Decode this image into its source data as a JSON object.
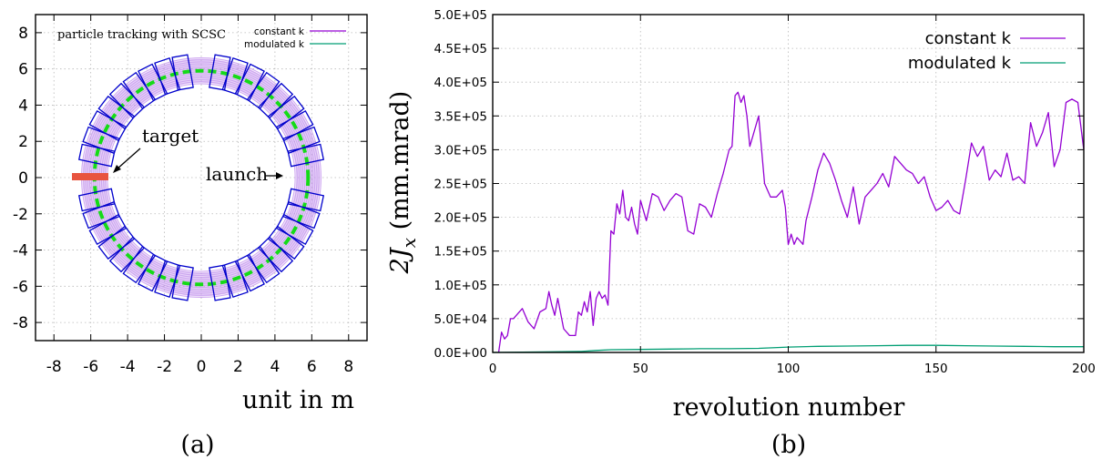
{
  "colors": {
    "constant": "#9400d3",
    "modulated": "#009e73",
    "magnet": "#0000cc",
    "target": "#e8543f",
    "orbit": "#00e020"
  },
  "chart_data": [
    {
      "type": "scatter",
      "panel_label": "(a)",
      "annotation": "particle tracking with SCSC",
      "legend": [
        "constant k",
        "modulated k"
      ],
      "xlabel": "unit in m",
      "ylabel": "",
      "xlim": [
        -9,
        9
      ],
      "ylim": [
        -9,
        9
      ],
      "xticks": [
        "-8",
        "-6",
        "-4",
        "-2",
        "0",
        "2",
        "4",
        "6",
        "8"
      ],
      "yticks": [
        "8",
        "6",
        "4",
        "2",
        "0",
        "-2",
        "-4",
        "-6",
        "-8"
      ],
      "grid": true,
      "ring": {
        "center": [
          0,
          0
        ],
        "radius_inner": 5.0,
        "radius_outer": 6.6
      },
      "target": {
        "x": [
          -7.0,
          -5.0
        ],
        "y": 0
      },
      "labels": {
        "target": "target",
        "launch": "launch"
      }
    },
    {
      "type": "line",
      "panel_label": "(b)",
      "xlabel": "revolution number",
      "ylabel": "2J_x (mm.mrad)",
      "ylabel_main": "2J",
      "ylabel_sub": "x",
      "ylabel_unit": " (mm.mrad)",
      "xlim": [
        0,
        200
      ],
      "ylim": [
        0,
        500000
      ],
      "xticks": [
        "0",
        "50",
        "100",
        "150",
        "200"
      ],
      "yticks": [
        "0.0E+00",
        "5.0E+04",
        "1.0E+05",
        "1.5E+05",
        "2.0E+05",
        "2.5E+05",
        "3.0E+05",
        "3.5E+05",
        "4.0E+05",
        "4.5E+05",
        "5.0E+05"
      ],
      "grid": true,
      "legend_position": "top-right",
      "series": [
        {
          "name": "constant k",
          "x": [
            2,
            3,
            4,
            5,
            6,
            7,
            8,
            10,
            12,
            14,
            16,
            18,
            19,
            20,
            21,
            22,
            24,
            26,
            28,
            29,
            30,
            31,
            32,
            33,
            34,
            35,
            36,
            37,
            38,
            39,
            40,
            41,
            42,
            43,
            44,
            45,
            46,
            47,
            48,
            49,
            50,
            52,
            54,
            56,
            58,
            60,
            62,
            64,
            66,
            68,
            70,
            72,
            74,
            76,
            78,
            80,
            81,
            82,
            83,
            84,
            85,
            86,
            87,
            88,
            90,
            92,
            94,
            96,
            98,
            99,
            100,
            101,
            102,
            103,
            104,
            105,
            106,
            108,
            110,
            112,
            114,
            116,
            118,
            120,
            122,
            124,
            126,
            128,
            130,
            132,
            134,
            136,
            138,
            140,
            142,
            144,
            146,
            148,
            150,
            152,
            154,
            156,
            158,
            160,
            162,
            164,
            166,
            168,
            170,
            172,
            174,
            176,
            178,
            180,
            182,
            184,
            186,
            188,
            190,
            192,
            194,
            196,
            198,
            200
          ],
          "y": [
            0,
            30000,
            20000,
            25000,
            50000,
            50000,
            55000,
            65000,
            45000,
            35000,
            60000,
            65000,
            90000,
            70000,
            55000,
            80000,
            35000,
            25000,
            25000,
            60000,
            55000,
            75000,
            60000,
            90000,
            40000,
            80000,
            90000,
            80000,
            85000,
            70000,
            180000,
            175000,
            220000,
            205000,
            240000,
            200000,
            195000,
            215000,
            190000,
            175000,
            225000,
            195000,
            235000,
            230000,
            210000,
            225000,
            235000,
            230000,
            180000,
            175000,
            220000,
            215000,
            200000,
            235000,
            265000,
            300000,
            305000,
            380000,
            385000,
            370000,
            380000,
            350000,
            305000,
            320000,
            350000,
            250000,
            230000,
            230000,
            240000,
            215000,
            160000,
            175000,
            160000,
            170000,
            165000,
            160000,
            195000,
            230000,
            270000,
            295000,
            280000,
            255000,
            225000,
            200000,
            245000,
            190000,
            230000,
            240000,
            250000,
            265000,
            245000,
            290000,
            280000,
            270000,
            265000,
            250000,
            260000,
            230000,
            210000,
            215000,
            225000,
            210000,
            205000,
            255000,
            310000,
            290000,
            305000,
            255000,
            270000,
            260000,
            295000,
            255000,
            260000,
            250000,
            340000,
            305000,
            325000,
            355000,
            275000,
            300000,
            370000,
            375000,
            370000,
            300000
          ],
          "color": "#9400d3"
        },
        {
          "name": "modulated k",
          "x": [
            0,
            10,
            20,
            30,
            35,
            40,
            50,
            60,
            70,
            80,
            90,
            100,
            110,
            120,
            130,
            140,
            150,
            160,
            170,
            180,
            190,
            200
          ],
          "y": [
            0,
            500,
            1000,
            1500,
            3000,
            4000,
            4500,
            5000,
            5500,
            5500,
            6000,
            8000,
            9000,
            9500,
            10000,
            10500,
            10500,
            10000,
            9500,
            9000,
            8500,
            8500
          ],
          "color": "#009e73"
        }
      ]
    }
  ]
}
